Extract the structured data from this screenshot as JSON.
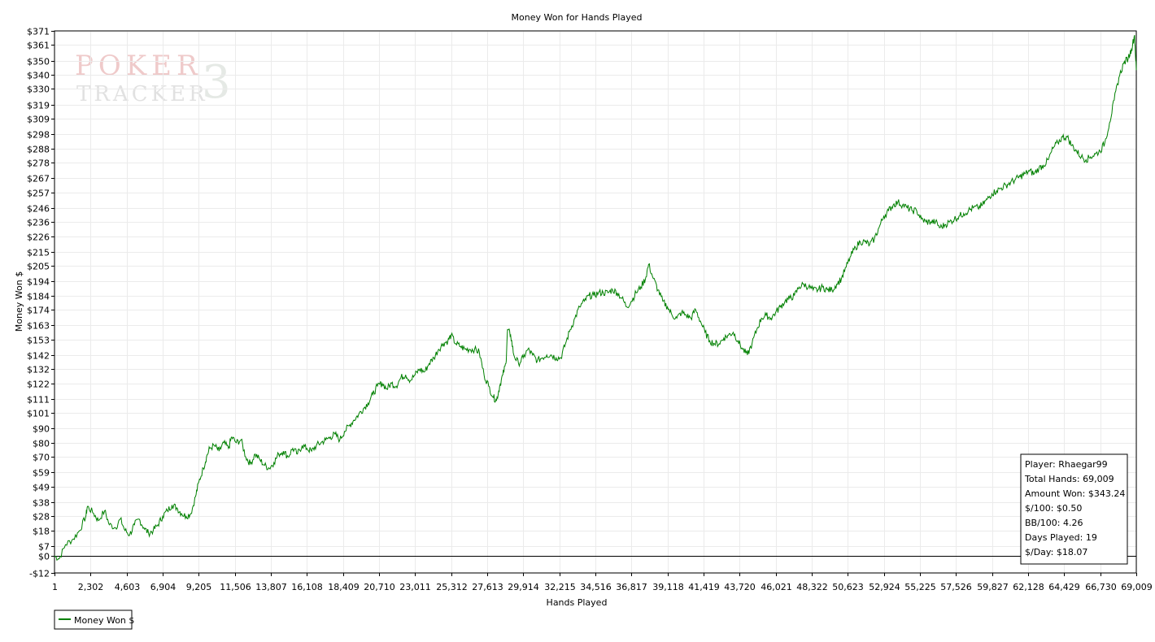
{
  "chart_data": {
    "type": "line",
    "title": "Money Won for Hands Played",
    "xlabel": "Hands Played",
    "ylabel": "Money Won $",
    "xlim": [
      1,
      69009
    ],
    "ylim": [
      -12,
      371
    ],
    "x_ticks": [
      "1",
      "2,302",
      "4,603",
      "6,904",
      "9,205",
      "11,506",
      "13,807",
      "16,108",
      "18,409",
      "20,710",
      "23,011",
      "25,312",
      "27,613",
      "29,914",
      "32,215",
      "34,516",
      "36,817",
      "39,118",
      "41,419",
      "43,720",
      "46,021",
      "48,322",
      "50,623",
      "52,924",
      "55,225",
      "57,526",
      "59,827",
      "62,128",
      "64,429",
      "66,730",
      "69,009"
    ],
    "y_ticks": [
      {
        "label": "$371",
        "value": 371
      },
      {
        "label": "$361",
        "value": 361
      },
      {
        "label": "$350",
        "value": 350
      },
      {
        "label": "$340",
        "value": 340
      },
      {
        "label": "$330",
        "value": 330
      },
      {
        "label": "$319",
        "value": 319
      },
      {
        "label": "$309",
        "value": 309
      },
      {
        "label": "$298",
        "value": 298
      },
      {
        "label": "$288",
        "value": 288
      },
      {
        "label": "$278",
        "value": 278
      },
      {
        "label": "$267",
        "value": 267
      },
      {
        "label": "$257",
        "value": 257
      },
      {
        "label": "$246",
        "value": 246
      },
      {
        "label": "$236",
        "value": 236
      },
      {
        "label": "$226",
        "value": 226
      },
      {
        "label": "$215",
        "value": 215
      },
      {
        "label": "$205",
        "value": 205
      },
      {
        "label": "$194",
        "value": 194
      },
      {
        "label": "$184",
        "value": 184
      },
      {
        "label": "$174",
        "value": 174
      },
      {
        "label": "$163",
        "value": 163
      },
      {
        "label": "$153",
        "value": 153
      },
      {
        "label": "$142",
        "value": 142
      },
      {
        "label": "$132",
        "value": 132
      },
      {
        "label": "$122",
        "value": 122
      },
      {
        "label": "$111",
        "value": 111
      },
      {
        "label": "$101",
        "value": 101
      },
      {
        "label": "$90",
        "value": 90
      },
      {
        "label": "$80",
        "value": 80
      },
      {
        "label": "$70",
        "value": 70
      },
      {
        "label": "$59",
        "value": 59
      },
      {
        "label": "$49",
        "value": 49
      },
      {
        "label": "$38",
        "value": 38
      },
      {
        "label": "$28",
        "value": 28
      },
      {
        "label": "$18",
        "value": 18
      },
      {
        "label": "$7",
        "value": 7
      },
      {
        "label": "$0",
        "value": 0
      },
      {
        "label": "-$12",
        "value": -12
      }
    ],
    "grid": true,
    "legend_position": "bottom-left",
    "series": [
      {
        "name": "Money Won $",
        "color": "#008000",
        "points": [
          [
            1,
            0
          ],
          [
            300,
            -2
          ],
          [
            700,
            8
          ],
          [
            1200,
            12
          ],
          [
            1600,
            18
          ],
          [
            2000,
            28
          ],
          [
            2100,
            35
          ],
          [
            2500,
            30
          ],
          [
            2800,
            25
          ],
          [
            3200,
            32
          ],
          [
            3500,
            22
          ],
          [
            3900,
            20
          ],
          [
            4200,
            26
          ],
          [
            4500,
            18
          ],
          [
            4800,
            15
          ],
          [
            5100,
            22
          ],
          [
            5400,
            26
          ],
          [
            5700,
            20
          ],
          [
            6000,
            16
          ],
          [
            6300,
            18
          ],
          [
            6600,
            22
          ],
          [
            6900,
            28
          ],
          [
            7200,
            32
          ],
          [
            7500,
            36
          ],
          [
            7800,
            34
          ],
          [
            8100,
            30
          ],
          [
            8400,
            28
          ],
          [
            8700,
            30
          ],
          [
            9000,
            42
          ],
          [
            9200,
            52
          ],
          [
            9500,
            62
          ],
          [
            9700,
            70
          ],
          [
            9900,
            76
          ],
          [
            10200,
            78
          ],
          [
            10500,
            74
          ],
          [
            10800,
            80
          ],
          [
            11100,
            76
          ],
          [
            11300,
            84
          ],
          [
            11600,
            80
          ],
          [
            11900,
            82
          ],
          [
            12200,
            70
          ],
          [
            12500,
            65
          ],
          [
            12800,
            72
          ],
          [
            13100,
            68
          ],
          [
            13400,
            64
          ],
          [
            13700,
            62
          ],
          [
            14000,
            66
          ],
          [
            14300,
            72
          ],
          [
            14600,
            74
          ],
          [
            14900,
            70
          ],
          [
            15200,
            76
          ],
          [
            15500,
            72
          ],
          [
            15800,
            78
          ],
          [
            16100,
            76
          ],
          [
            16400,
            74
          ],
          [
            16700,
            78
          ],
          [
            17000,
            80
          ],
          [
            17300,
            82
          ],
          [
            17600,
            84
          ],
          [
            17900,
            86
          ],
          [
            18200,
            82
          ],
          [
            18500,
            88
          ],
          [
            18800,
            92
          ],
          [
            19100,
            96
          ],
          [
            19400,
            100
          ],
          [
            19700,
            104
          ],
          [
            20000,
            108
          ],
          [
            20300,
            114
          ],
          [
            20600,
            120
          ],
          [
            20900,
            122
          ],
          [
            21200,
            118
          ],
          [
            21500,
            122
          ],
          [
            21800,
            120
          ],
          [
            22100,
            126
          ],
          [
            22400,
            128
          ],
          [
            22700,
            124
          ],
          [
            23000,
            128
          ],
          [
            23300,
            132
          ],
          [
            23600,
            130
          ],
          [
            23900,
            136
          ],
          [
            24200,
            140
          ],
          [
            24500,
            146
          ],
          [
            24800,
            150
          ],
          [
            25100,
            152
          ],
          [
            25300,
            156
          ],
          [
            25600,
            150
          ],
          [
            25900,
            148
          ],
          [
            26200,
            146
          ],
          [
            26500,
            146
          ],
          [
            26800,
            146
          ],
          [
            27100,
            144
          ],
          [
            27400,
            128
          ],
          [
            27700,
            120
          ],
          [
            28000,
            112
          ],
          [
            28200,
            110
          ],
          [
            28400,
            120
          ],
          [
            28600,
            128
          ],
          [
            28800,
            136
          ],
          [
            28900,
            160
          ],
          [
            29100,
            156
          ],
          [
            29300,
            142
          ],
          [
            29600,
            136
          ],
          [
            29900,
            140
          ],
          [
            30200,
            146
          ],
          [
            30500,
            142
          ],
          [
            30800,
            138
          ],
          [
            31100,
            140
          ],
          [
            31400,
            142
          ],
          [
            31700,
            142
          ],
          [
            32000,
            140
          ],
          [
            32300,
            140
          ],
          [
            32600,
            150
          ],
          [
            32900,
            160
          ],
          [
            33200,
            168
          ],
          [
            33500,
            176
          ],
          [
            33800,
            180
          ],
          [
            34100,
            184
          ],
          [
            34400,
            184
          ],
          [
            34700,
            186
          ],
          [
            35000,
            186
          ],
          [
            35300,
            186
          ],
          [
            35600,
            188
          ],
          [
            35900,
            186
          ],
          [
            36200,
            182
          ],
          [
            36500,
            176
          ],
          [
            36800,
            180
          ],
          [
            37100,
            186
          ],
          [
            37400,
            190
          ],
          [
            37700,
            196
          ],
          [
            37900,
            206
          ],
          [
            38200,
            196
          ],
          [
            38500,
            188
          ],
          [
            38800,
            180
          ],
          [
            39100,
            176
          ],
          [
            39400,
            170
          ],
          [
            39700,
            168
          ],
          [
            40000,
            172
          ],
          [
            40300,
            170
          ],
          [
            40600,
            168
          ],
          [
            40900,
            174
          ],
          [
            41200,
            166
          ],
          [
            41500,
            158
          ],
          [
            41800,
            152
          ],
          [
            42100,
            150
          ],
          [
            42400,
            150
          ],
          [
            42700,
            154
          ],
          [
            43000,
            156
          ],
          [
            43300,
            158
          ],
          [
            43600,
            152
          ],
          [
            43900,
            146
          ],
          [
            44200,
            142
          ],
          [
            44500,
            150
          ],
          [
            44800,
            160
          ],
          [
            45100,
            168
          ],
          [
            45400,
            170
          ],
          [
            45700,
            168
          ],
          [
            46000,
            172
          ],
          [
            46300,
            176
          ],
          [
            46600,
            180
          ],
          [
            46900,
            182
          ],
          [
            47200,
            184
          ],
          [
            47500,
            190
          ],
          [
            47800,
            192
          ],
          [
            48100,
            190
          ],
          [
            48400,
            188
          ],
          [
            48700,
            188
          ],
          [
            49000,
            190
          ],
          [
            49300,
            188
          ],
          [
            49600,
            188
          ],
          [
            49900,
            192
          ],
          [
            50200,
            196
          ],
          [
            50500,
            204
          ],
          [
            50800,
            212
          ],
          [
            51100,
            218
          ],
          [
            51400,
            222
          ],
          [
            51700,
            222
          ],
          [
            52000,
            220
          ],
          [
            52300,
            224
          ],
          [
            52600,
            232
          ],
          [
            52900,
            240
          ],
          [
            53200,
            244
          ],
          [
            53500,
            248
          ],
          [
            53800,
            250
          ],
          [
            54100,
            248
          ],
          [
            54400,
            246
          ],
          [
            54700,
            244
          ],
          [
            55000,
            244
          ],
          [
            55300,
            238
          ],
          [
            55600,
            236
          ],
          [
            55900,
            236
          ],
          [
            56200,
            236
          ],
          [
            56500,
            232
          ],
          [
            56800,
            234
          ],
          [
            57100,
            236
          ],
          [
            57400,
            238
          ],
          [
            57700,
            240
          ],
          [
            58000,
            242
          ],
          [
            58300,
            244
          ],
          [
            58600,
            246
          ],
          [
            58900,
            246
          ],
          [
            59200,
            248
          ],
          [
            59500,
            252
          ],
          [
            59800,
            256
          ],
          [
            60100,
            258
          ],
          [
            60400,
            260
          ],
          [
            60700,
            262
          ],
          [
            61000,
            264
          ],
          [
            61300,
            266
          ],
          [
            61600,
            268
          ],
          [
            61900,
            270
          ],
          [
            62200,
            272
          ],
          [
            62500,
            270
          ],
          [
            62800,
            274
          ],
          [
            63100,
            276
          ],
          [
            63400,
            280
          ],
          [
            63700,
            288
          ],
          [
            64000,
            292
          ],
          [
            64300,
            296
          ],
          [
            64600,
            296
          ],
          [
            64900,
            290
          ],
          [
            65200,
            286
          ],
          [
            65500,
            282
          ],
          [
            65800,
            280
          ],
          [
            66100,
            282
          ],
          [
            66400,
            284
          ],
          [
            66700,
            286
          ],
          [
            67000,
            292
          ],
          [
            67300,
            306
          ],
          [
            67600,
            322
          ],
          [
            67900,
            338
          ],
          [
            68200,
            348
          ],
          [
            68500,
            352
          ],
          [
            68700,
            358
          ],
          [
            68900,
            368
          ],
          [
            69009,
            343.24
          ]
        ]
      }
    ]
  },
  "stats_box": {
    "player": "Player: Rhaegar99",
    "total_hands": "Total Hands: 69,009",
    "amount_won": "Amount Won: $343.24",
    "per_100": "$/100: $0.50",
    "bb_100": "BB/100: 4.26",
    "days_played": "Days Played: 19",
    "per_day": "$/Day: $18.07"
  },
  "watermark": {
    "line1": "POKER",
    "line2": "TRACKER",
    "version": "3"
  },
  "legend": {
    "label": "Money Won $"
  }
}
